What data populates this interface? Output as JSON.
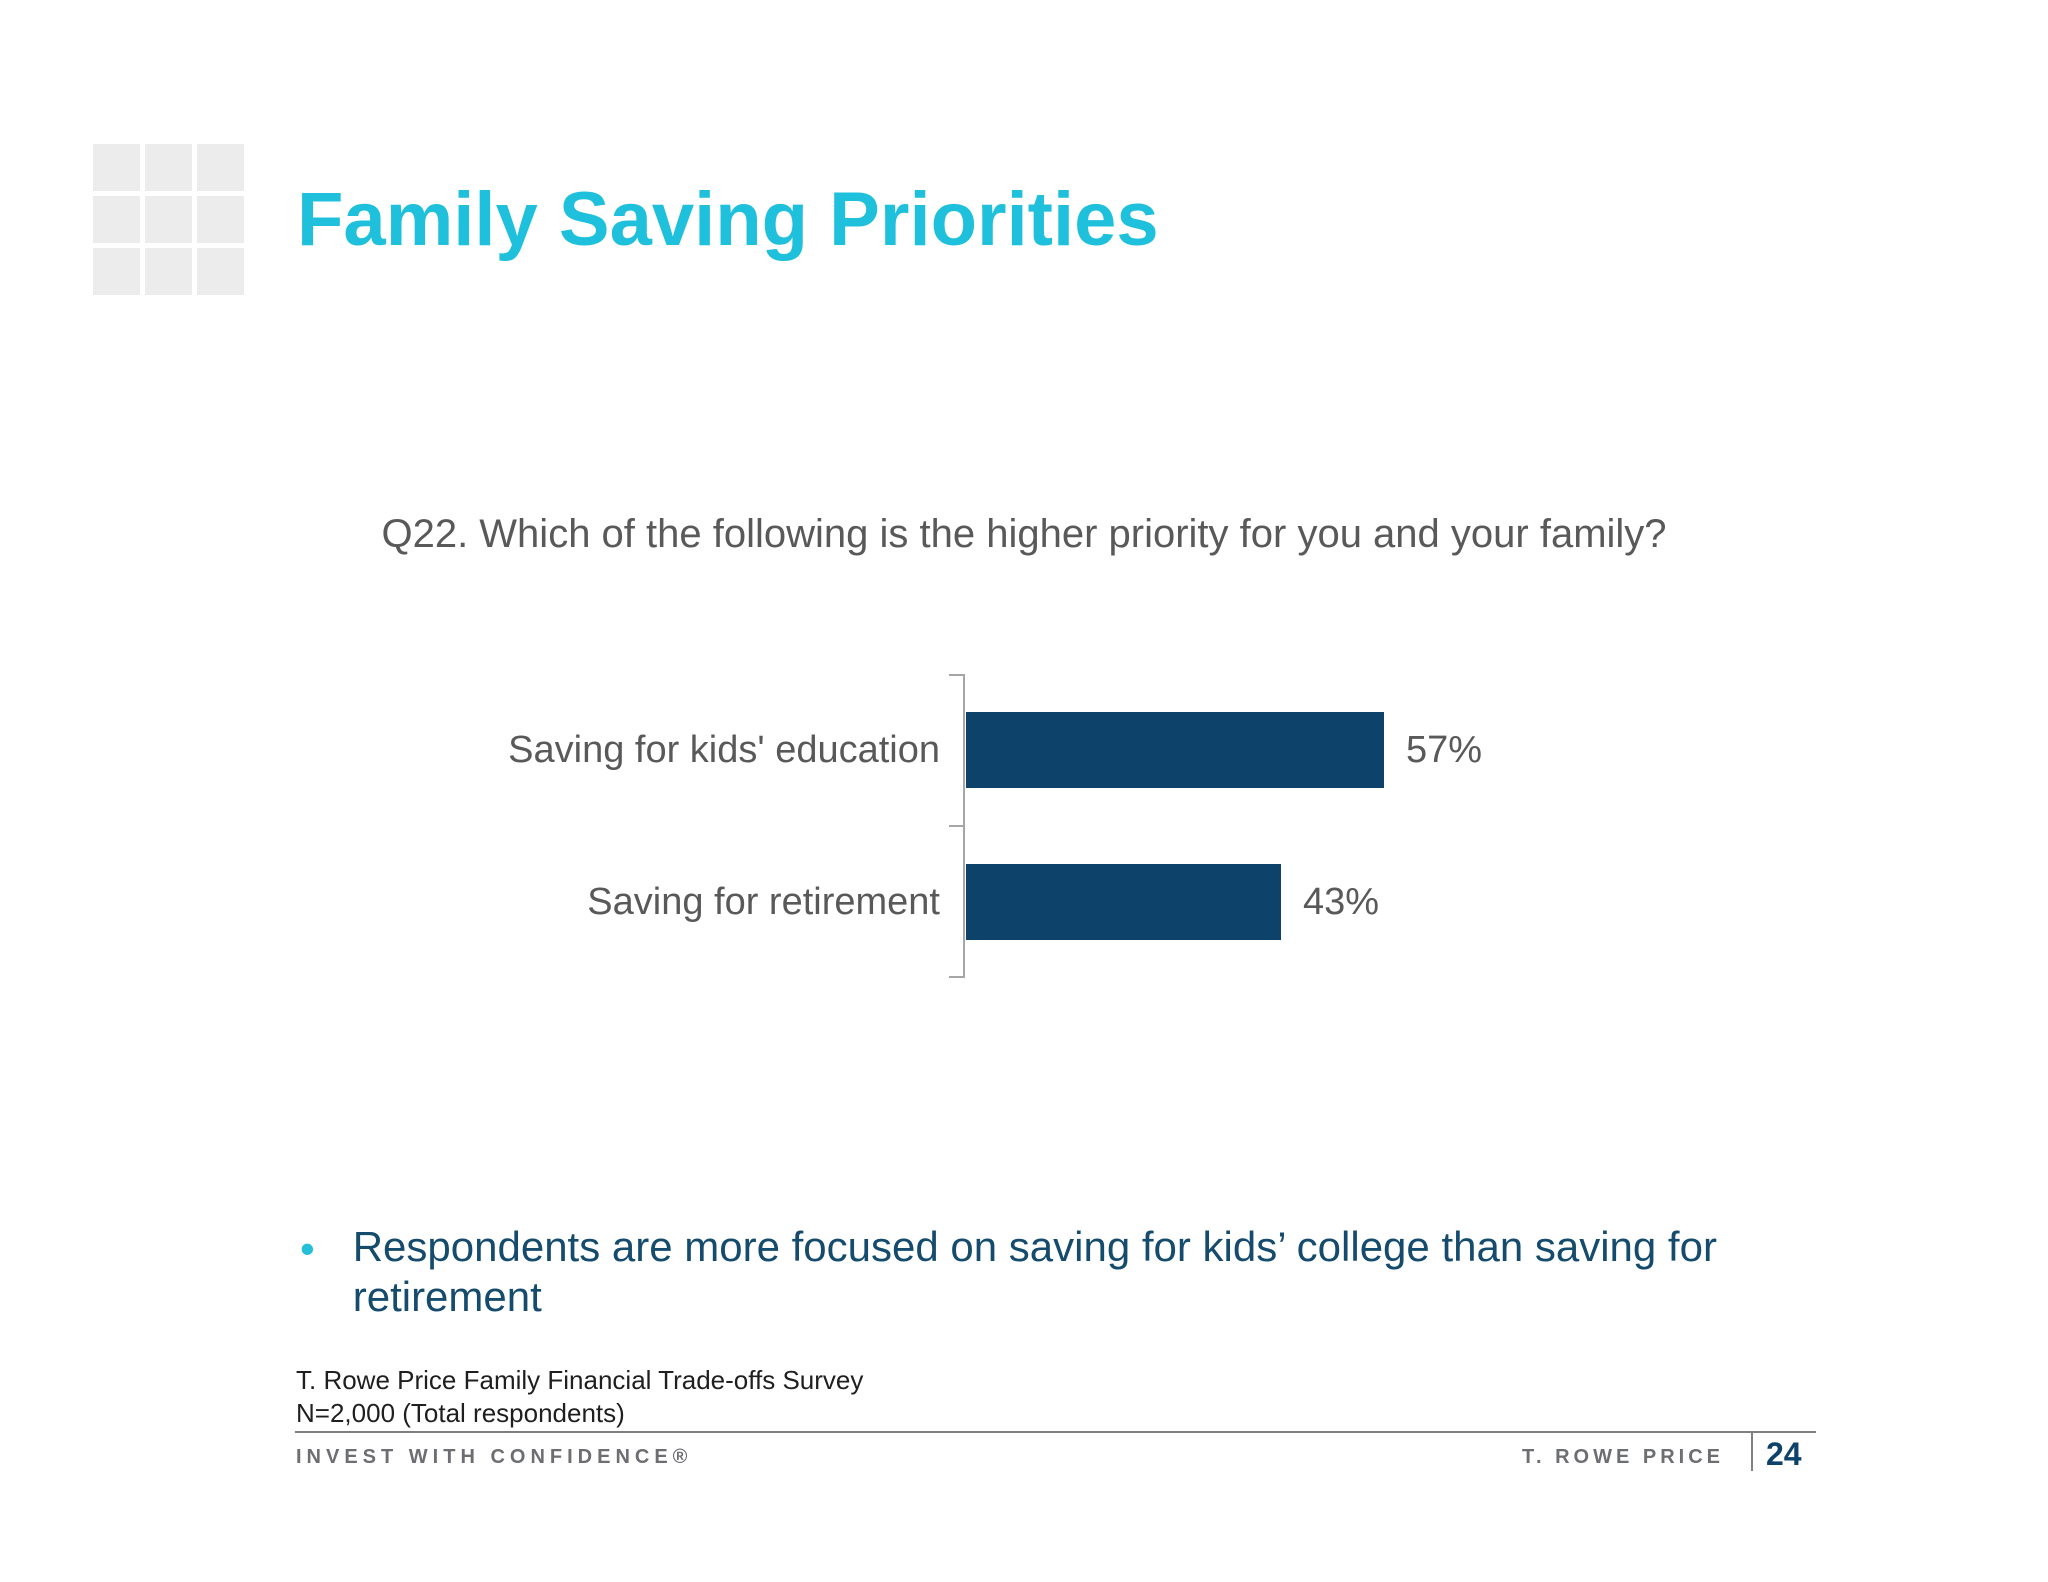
{
  "slide": {
    "title": "Family Saving Priorities",
    "question": "Q22. Which of the following is the higher priority for you and your family?",
    "bullets": [
      {
        "text": "Respondents are more focused on saving for kids’ college than saving for retirement"
      }
    ],
    "bullet_marker": "•",
    "footnote_line1": "T. Rowe Price Family Financial Trade-offs Survey",
    "footnote_line2": "N=2,000 (Total respondents)",
    "footer": {
      "tagline": "INVEST WITH CONFIDENCE®",
      "brand": "T. ROWE PRICE",
      "page_number": "24"
    },
    "colors": {
      "title_cyan": "#1fc0dc",
      "bar_navy": "#0d426b",
      "bullet_navy": "#154b6d",
      "text_gray": "#595959",
      "footer_gray": "#6d6e71",
      "axis_gray": "#a6a6a6",
      "logo_gray": "#ececec"
    }
  },
  "chart_data": {
    "type": "bar",
    "orientation": "horizontal",
    "title": "",
    "xlabel": "",
    "ylabel": "",
    "categories": [
      "Saving for kids' education",
      "Saving for retirement"
    ],
    "values": [
      57,
      43
    ],
    "value_labels": [
      "57%",
      "43%"
    ],
    "xlim": [
      0,
      100
    ],
    "grid": false,
    "legend": false,
    "bar_color": "#0d426b"
  }
}
